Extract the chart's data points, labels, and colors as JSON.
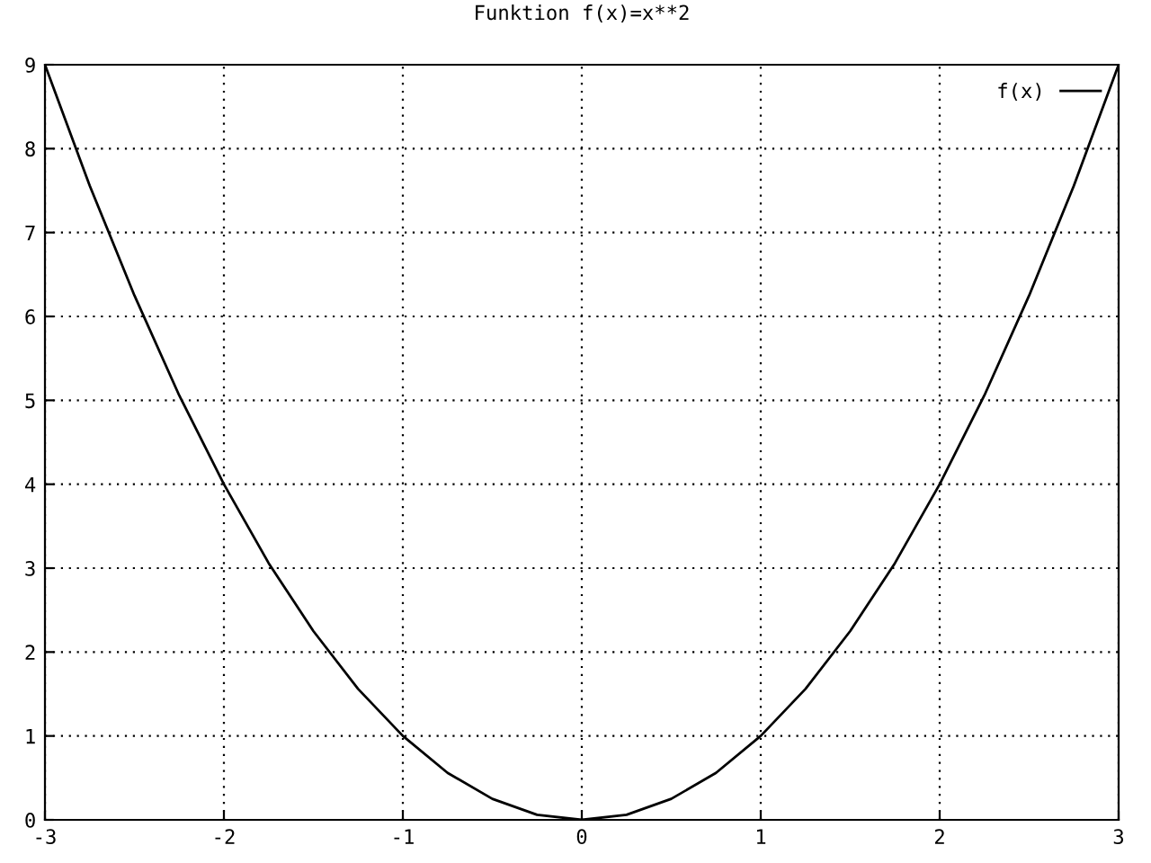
{
  "chart_data": {
    "type": "line",
    "title": "Funktion f(x)=x**2",
    "x": [
      -3,
      -2.75,
      -2.5,
      -2.25,
      -2,
      -1.75,
      -1.5,
      -1.25,
      -1,
      -0.75,
      -0.5,
      -0.25,
      0,
      0.25,
      0.5,
      0.75,
      1,
      1.25,
      1.5,
      1.75,
      2,
      2.25,
      2.5,
      2.75,
      3
    ],
    "series": [
      {
        "name": "f(x)",
        "color": "#000000",
        "values": [
          9,
          7.56,
          6.25,
          5.06,
          4,
          3.06,
          2.25,
          1.56,
          1,
          0.56,
          0.25,
          0.06,
          0,
          0.06,
          0.25,
          0.56,
          1,
          1.56,
          2.25,
          3.06,
          4,
          5.06,
          6.25,
          7.56,
          9
        ]
      }
    ],
    "xlim": [
      -3,
      3
    ],
    "ylim": [
      0,
      9
    ],
    "xticks": [
      -3,
      -2,
      -1,
      0,
      1,
      2,
      3
    ],
    "yticks": [
      0,
      1,
      2,
      3,
      4,
      5,
      6,
      7,
      8,
      9
    ],
    "grid": true,
    "legend": "top right",
    "line_style": "solid",
    "marker": "none"
  }
}
